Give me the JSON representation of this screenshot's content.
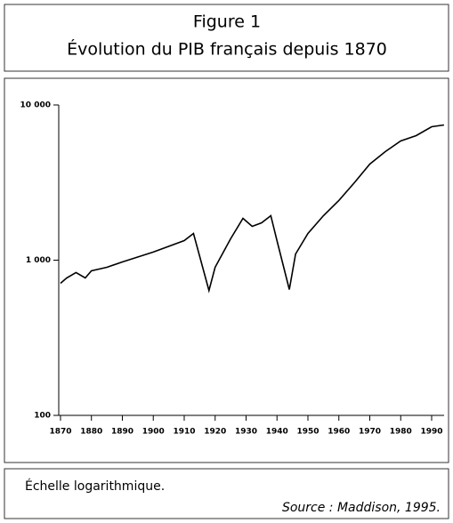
{
  "chart_data": {
    "type": "line",
    "title": "Figure 1",
    "subtitle": "Évolution du PIB français depuis 1870",
    "note": "Échelle logarithmique.",
    "source": "Source : Maddison, 1995.",
    "x": [
      1870,
      1872,
      1875,
      1878,
      1880,
      1885,
      1890,
      1900,
      1910,
      1913,
      1918,
      1920,
      1925,
      1929,
      1932,
      1935,
      1938,
      1940,
      1944,
      1946,
      1950,
      1955,
      1960,
      1965,
      1970,
      1975,
      1980,
      1985,
      1990,
      1994
    ],
    "values": [
      710,
      768,
      832,
      768,
      854,
      900,
      974,
      1127,
      1337,
      1486,
      638,
      900,
      1373,
      1859,
      1651,
      1741,
      1935,
      1337,
      647,
      1096,
      1486,
      1935,
      2421,
      3152,
      4159,
      5003,
      5861,
      6343,
      7241,
      7430
    ],
    "color": "#000000",
    "log_scale": true,
    "xlim": [
      1869,
      1994
    ],
    "xticks": [
      1870,
      1880,
      1890,
      1900,
      1910,
      1920,
      1930,
      1940,
      1950,
      1960,
      1970,
      1980,
      1990
    ],
    "ylim": [
      100,
      10000
    ],
    "yticks": [
      {
        "value": 100,
        "label": "100"
      },
      {
        "value": 1000,
        "label": "1 000"
      },
      {
        "value": 10000,
        "label": "10 000"
      }
    ]
  }
}
